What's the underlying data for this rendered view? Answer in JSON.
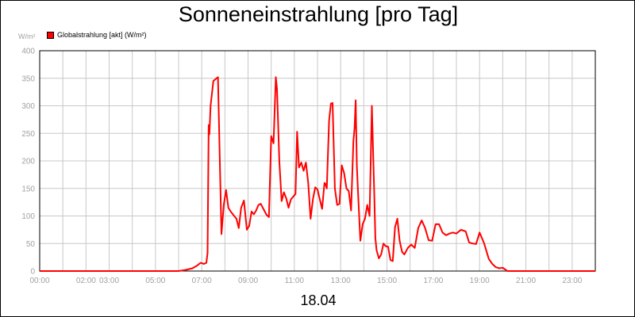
{
  "chart_data": {
    "type": "line",
    "title": "Sonneneinstrahlung [pro Tag]",
    "ylabel": "W/m²",
    "xlabel": "18.04",
    "x_unit": "hours",
    "ylim": [
      0,
      400
    ],
    "xlim": [
      0,
      24
    ],
    "yticks": [
      "0",
      "50",
      "100",
      "150",
      "200",
      "250",
      "300",
      "350",
      "400"
    ],
    "xticks": [
      {
        "x": 0,
        "label": "00:00"
      },
      {
        "x": 2,
        "label": "02:00"
      },
      {
        "x": 3,
        "label": "03:00"
      },
      {
        "x": 5,
        "label": "05:00"
      },
      {
        "x": 7,
        "label": "07:00"
      },
      {
        "x": 9,
        "label": "09:00"
      },
      {
        "x": 11,
        "label": "11:00"
      },
      {
        "x": 13,
        "label": "13:00"
      },
      {
        "x": 15,
        "label": "15:00"
      },
      {
        "x": 17,
        "label": "17:00"
      },
      {
        "x": 19,
        "label": "19:00"
      },
      {
        "x": 21,
        "label": "21:00"
      },
      {
        "x": 23,
        "label": "23:00"
      }
    ],
    "grid": true,
    "legend_position": "top-left",
    "series": [
      {
        "name": "Globalstrahlung [akt] (W/m²)",
        "color": "#ff0000",
        "x": [
          0,
          6.0,
          6.3,
          6.6,
          6.8,
          6.95,
          7.1,
          7.2,
          7.25,
          7.3,
          7.33,
          7.38,
          7.5,
          7.7,
          7.85,
          7.95,
          8.05,
          8.15,
          8.25,
          8.4,
          8.5,
          8.6,
          8.7,
          8.82,
          8.95,
          9.05,
          9.15,
          9.25,
          9.35,
          9.45,
          9.55,
          9.7,
          9.8,
          9.9,
          10.0,
          10.1,
          10.2,
          10.25,
          10.35,
          10.45,
          10.55,
          10.65,
          10.75,
          10.85,
          10.95,
          11.05,
          11.12,
          11.2,
          11.3,
          11.4,
          11.5,
          11.6,
          11.7,
          11.8,
          11.9,
          12.0,
          12.1,
          12.2,
          12.3,
          12.35,
          12.4,
          12.5,
          12.58,
          12.65,
          12.75,
          12.85,
          12.95,
          13.05,
          13.15,
          13.25,
          13.35,
          13.45,
          13.55,
          13.6,
          13.65,
          13.7,
          13.75,
          13.85,
          13.95,
          14.05,
          14.15,
          14.25,
          14.35,
          14.45,
          14.5,
          14.55,
          14.65,
          14.75,
          14.85,
          14.95,
          15.05,
          15.15,
          15.25,
          15.35,
          15.45,
          15.55,
          15.65,
          15.75,
          15.9,
          16.05,
          16.2,
          16.35,
          16.5,
          16.65,
          16.8,
          16.95,
          17.1,
          17.25,
          17.4,
          17.55,
          17.7,
          17.85,
          18.0,
          18.2,
          18.4,
          18.55,
          18.7,
          18.85,
          19.0,
          19.2,
          19.4,
          19.55,
          19.7,
          19.85,
          20.0,
          20.2,
          24.0
        ],
        "values": [
          0,
          0,
          2,
          5,
          10,
          15,
          13,
          15,
          33,
          265,
          248,
          300,
          345,
          352,
          67,
          120,
          147,
          115,
          108,
          100,
          95,
          78,
          115,
          128,
          75,
          82,
          108,
          103,
          110,
          120,
          122,
          110,
          102,
          98,
          245,
          232,
          352,
          330,
          200,
          127,
          143,
          132,
          115,
          130,
          135,
          140,
          253,
          188,
          197,
          182,
          197,
          160,
          95,
          130,
          152,
          148,
          130,
          113,
          160,
          158,
          150,
          273,
          304,
          305,
          150,
          120,
          122,
          192,
          178,
          150,
          145,
          110,
          235,
          260,
          310,
          190,
          145,
          55,
          85,
          95,
          120,
          100,
          300,
          140,
          60,
          38,
          23,
          30,
          50,
          45,
          44,
          20,
          18,
          80,
          95,
          55,
          35,
          30,
          42,
          48,
          42,
          78,
          92,
          78,
          56,
          55,
          85,
          85,
          70,
          65,
          68,
          70,
          68,
          75,
          72,
          52,
          50,
          49,
          70,
          50,
          22,
          13,
          7,
          5,
          6,
          0,
          0
        ]
      }
    ]
  }
}
